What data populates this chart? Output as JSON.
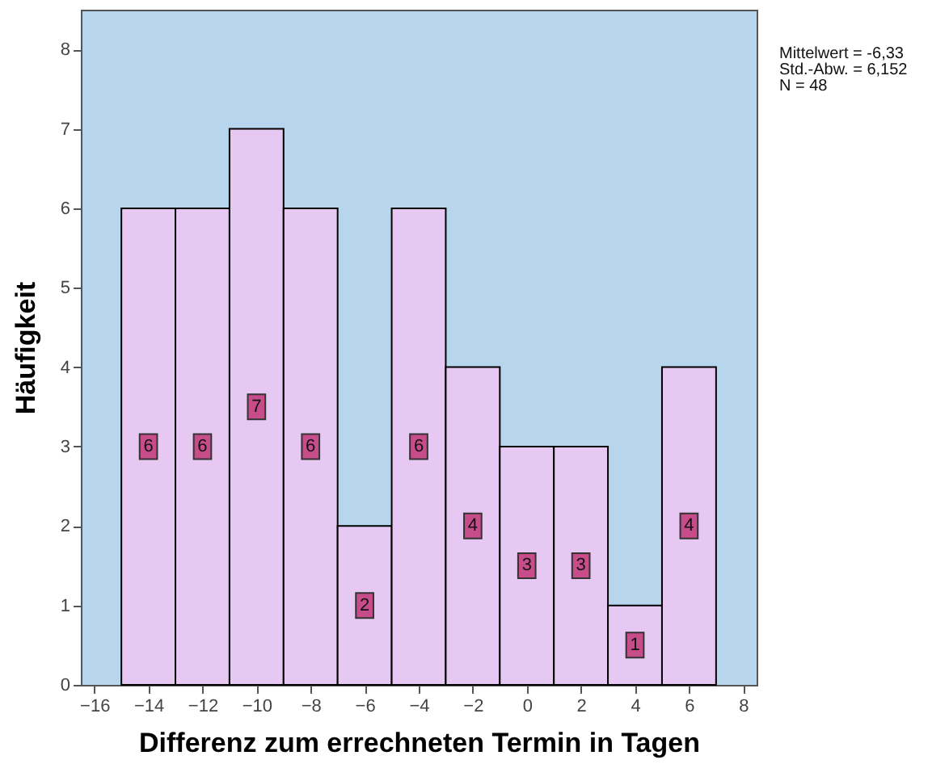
{
  "chart_data": {
    "type": "histogram",
    "xlabel": "Differenz zum errechneten Termin in Tagen",
    "ylabel": "Häufigkeit",
    "bins": [
      -15,
      -13,
      -11,
      -9,
      -7,
      -5,
      -3,
      -1,
      1,
      3,
      5,
      7
    ],
    "values": [
      6,
      6,
      7,
      6,
      2,
      6,
      4,
      3,
      3,
      1,
      4
    ],
    "color": "#e6c8f2",
    "xlim": [
      -16.5,
      8.5
    ],
    "xticks": [
      -16,
      -14,
      -12,
      -10,
      -8,
      -6,
      -4,
      -2,
      0,
      2,
      4,
      6,
      8
    ],
    "ylim": [
      0,
      8.5
    ],
    "yticks": [
      0,
      1,
      2,
      3,
      4,
      5,
      6,
      7,
      8
    ],
    "grid": false,
    "data_labels": true,
    "annotations": [
      "Mittelwert = -6,33",
      "Std.-Abw. = 6,152",
      "N = 48"
    ]
  }
}
